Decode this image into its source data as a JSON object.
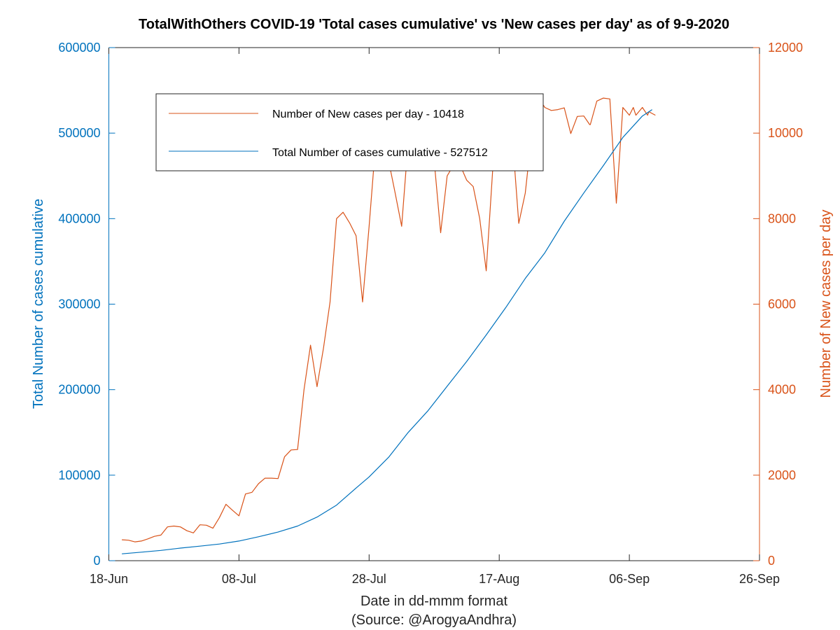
{
  "chart_data": {
    "type": "line",
    "title": "TotalWithOthers COVID-19 'Total cases cumulative' vs 'New cases per day' as of 9-9-2020",
    "xlabel": "Date in dd-mmm format",
    "source": "(Source: @ArogyaAndhra)",
    "ylabel_left": "Total Number of cases cumulative",
    "ylabel_right": "Number of New cases per day",
    "x_start_date": "2020-06-18",
    "x_ticks": [
      0,
      20,
      40,
      60,
      80,
      100
    ],
    "x_tick_labels": [
      "18-Jun",
      "08-Jul",
      "28-Jul",
      "17-Aug",
      "06-Sep",
      "26-Sep"
    ],
    "x_range": [
      0,
      100
    ],
    "ylim_left": [
      0,
      600000
    ],
    "yticks_left": [
      0,
      100000,
      200000,
      300000,
      400000,
      500000,
      600000
    ],
    "ylim_right": [
      0,
      12000
    ],
    "yticks_right": [
      0,
      2000,
      4000,
      6000,
      8000,
      10000,
      12000
    ],
    "colors": {
      "left_axis": "#0072BD",
      "right_axis": "#D95319",
      "cumulative": "#0072BD",
      "new": "#D95319"
    },
    "legend": {
      "position": "top-left",
      "entries": [
        "Number of New cases per day - 10418",
        "Total Number of cases cumulative - 527512"
      ]
    },
    "series": [
      {
        "name": "Number of New cases per day - 10418",
        "axis": "right",
        "x": [
          2,
          3,
          4,
          5,
          6,
          7,
          8,
          9,
          10,
          11,
          12,
          13,
          14,
          15,
          16,
          17,
          18,
          19,
          20,
          21,
          22,
          23,
          24,
          25,
          26,
          27,
          28,
          29,
          30,
          31,
          32,
          33,
          34,
          35,
          36,
          37,
          38,
          39,
          40,
          41,
          42,
          43,
          44,
          45,
          46,
          47,
          48,
          49,
          50,
          51,
          52,
          53,
          54,
          55,
          56,
          57,
          58,
          59,
          60,
          61,
          62,
          63,
          64,
          65,
          66,
          67,
          68,
          69,
          70,
          71,
          72,
          73,
          73.9,
          74,
          75,
          76,
          77,
          78,
          79,
          80,
          80.6,
          81,
          82,
          82.8,
          83,
          84
        ],
        "values": [
          490,
          480,
          440,
          460,
          510,
          570,
          600,
          790,
          810,
          790,
          700,
          650,
          840,
          830,
          760,
          1010,
          1320,
          1180,
          1050,
          1560,
          1600,
          1800,
          1930,
          1930,
          1920,
          2430,
          2590,
          2600,
          4000,
          5040,
          4070,
          4980,
          6050,
          8000,
          8150,
          7900,
          7600,
          6050,
          7820,
          9750,
          9800,
          9350,
          8600,
          7820,
          9800,
          9870,
          9500,
          9700,
          9350,
          7670,
          9000,
          9260,
          9250,
          8900,
          8750,
          8000,
          6780,
          9150,
          10030,
          10000,
          9940,
          7890,
          8600,
          10000,
          10840,
          10600,
          10530,
          10550,
          10590,
          9990,
          10390,
          10400,
          10200,
          10200,
          10750,
          10820,
          10800,
          8360,
          10600,
          10418,
          10600,
          10418,
          10600,
          10418,
          10500,
          10418
        ],
        "note": "values approximated"
      },
      {
        "name": "Total Number of cases cumulative - 527512",
        "axis": "left",
        "x": [
          2,
          5,
          8,
          11,
          14,
          17,
          20,
          23,
          26,
          29,
          32,
          35,
          38,
          40,
          43,
          46,
          49,
          52,
          55,
          58,
          61,
          64,
          67,
          70,
          73,
          76,
          79,
          82,
          83.5
        ],
        "values": [
          8000,
          10000,
          12000,
          14700,
          17000,
          19500,
          23000,
          28000,
          33500,
          40500,
          51000,
          65000,
          85000,
          98000,
          121000,
          150000,
          175000,
          204000,
          233000,
          264000,
          296000,
          330000,
          360000,
          397000,
          430000,
          462000,
          495000,
          520000,
          527512
        ]
      }
    ]
  }
}
